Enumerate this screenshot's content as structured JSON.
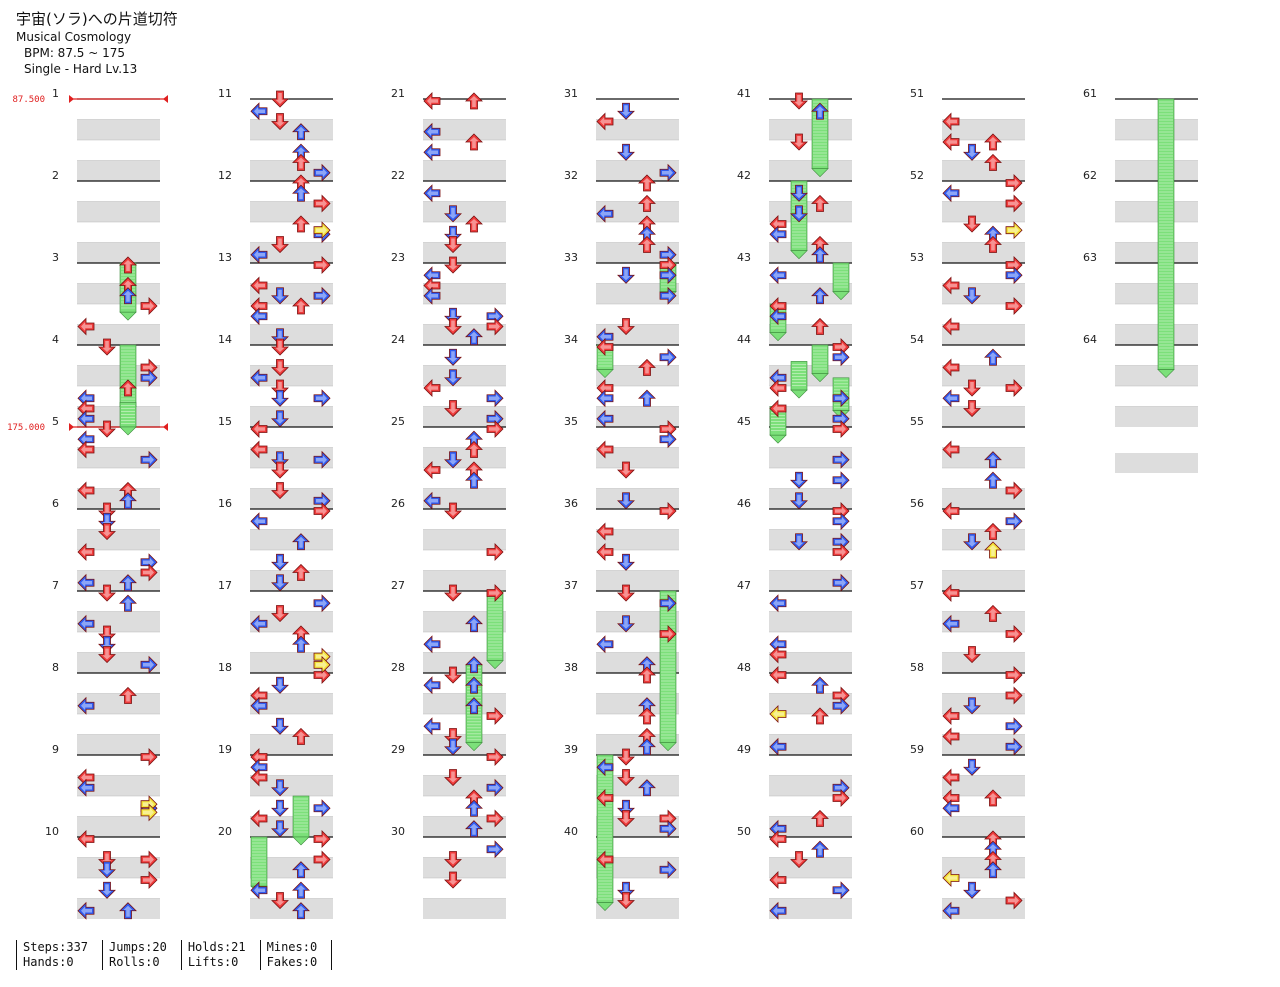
{
  "song": {
    "title": "宇宙(ソラ)への片道切符",
    "artist": "Musical Cosmology",
    "bpm_range": "BPM: 87.5 ~ 175",
    "chart": "Single - Hard  Lv.13"
  },
  "colors": {
    "red": "#ef3b3b",
    "blue": "#2f5cf0",
    "yellow": "#f3e33a",
    "green": "#7ce07a",
    "band": "#dddddd",
    "bpm": "#e02020"
  },
  "chart_data": {
    "type": "step-chart",
    "measures": [
      "1",
      "2",
      "3",
      "4",
      "5",
      "6",
      "7",
      "8",
      "9",
      "10",
      "11",
      "12",
      "13",
      "14",
      "15",
      "16",
      "17",
      "18",
      "19",
      "20",
      "21",
      "22",
      "23",
      "24",
      "25",
      "26",
      "27",
      "28",
      "29",
      "30",
      "31",
      "32",
      "33",
      "34",
      "35",
      "36",
      "37",
      "38",
      "39",
      "40",
      "41",
      "42",
      "43",
      "44",
      "45",
      "46",
      "47",
      "48",
      "49",
      "50",
      "51",
      "52",
      "53",
      "54",
      "55",
      "56",
      "57",
      "58",
      "59",
      "60",
      "61",
      "62",
      "63",
      "64"
    ],
    "bpm_changes": [
      {
        "measure": 1,
        "label": "87.500"
      },
      {
        "measure": 5,
        "label": "175.000"
      }
    ]
  },
  "stats": [
    {
      "line1": "Steps:337",
      "line2": "Hands:0"
    },
    {
      "line1": "Jumps:20",
      "line2": "Rolls:0"
    },
    {
      "line1": "Holds:21",
      "line2": "Lifts:0"
    },
    {
      "line1": "Mines:0",
      "line2": "Fakes:0"
    }
  ]
}
